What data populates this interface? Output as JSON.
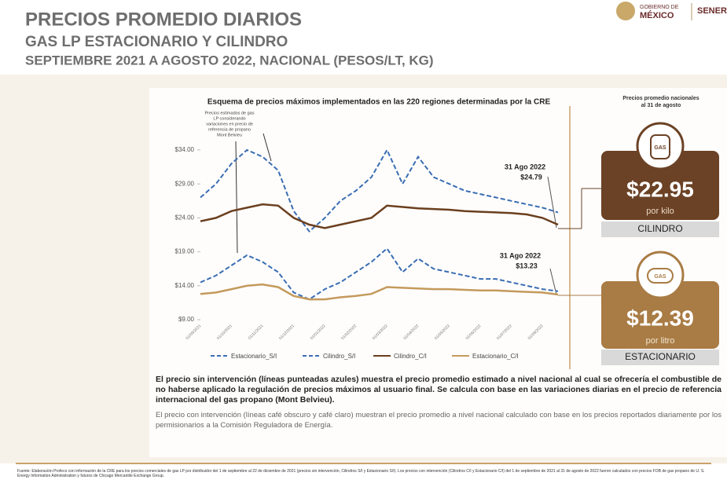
{
  "header": {
    "title": "PRECIOS PROMEDIO DIARIOS",
    "subtitle": "GAS LP ESTACIONARIO Y CILINDRO",
    "period": "SEPTIEMBRE 2021 A AGOSTO 2022, NACIONAL (PESOS/LT, KG)",
    "logo_top": "GOBIERNO DE",
    "logo_bottom": "MÉXICO",
    "agency": "SENER"
  },
  "chart_data": {
    "type": "line",
    "title": "Esquema de precios máximos implementados en las 220 regiones determinadas por la CRE",
    "annotation": [
      "Precios estimados de gas",
      "LP considerando",
      "variaciones en precio de",
      "referencia de propano",
      "Mont Belvieu"
    ],
    "end_labels": [
      {
        "date": "31 Ago 2022",
        "price": "$24.79"
      },
      {
        "date": "31 Ago 2022",
        "price": "$13.23"
      }
    ],
    "categories": [
      "01/09/2021",
      null,
      "01/10/2021",
      null,
      "01/11/2021",
      null,
      "01/12/2021",
      null,
      "01/01/2022",
      null,
      "01/02/2022",
      null,
      "01/03/2022",
      null,
      "01/04/2022",
      null,
      "01/05/2022",
      null,
      "01/06/2022",
      null,
      "01/07/2022",
      null,
      "01/08/2022",
      null
    ],
    "ylim": [
      9,
      37
    ],
    "yticks": [
      {
        "value": 9,
        "label": "$9.00"
      },
      {
        "value": 14,
        "label": "$14.00"
      },
      {
        "value": 19,
        "label": "$19.00"
      },
      {
        "value": 24,
        "label": "$24.00"
      },
      {
        "value": 29,
        "label": "$29.00"
      },
      {
        "value": 34,
        "label": "$34.00"
      }
    ],
    "series": [
      {
        "name": "Estacionario_S/I",
        "color": "#3a6db3",
        "style": "dashed",
        "values": [
          14.5,
          15.5,
          17,
          18.5,
          17.5,
          16,
          13,
          12,
          13.5,
          14.5,
          16,
          17.5,
          19.5,
          16,
          18,
          16.5,
          16,
          15.5,
          15,
          15,
          14.5,
          14,
          13.5,
          13.2
        ]
      },
      {
        "name": "Cilindro_S/I",
        "color": "#3a6db3",
        "style": "dashed",
        "values": [
          27,
          29,
          32,
          34,
          33,
          31,
          25,
          22,
          24,
          26.5,
          28,
          30,
          34,
          29,
          33,
          30,
          29,
          28,
          27.5,
          27,
          26.5,
          26,
          25.5,
          24.8
        ]
      },
      {
        "name": "Cilindro_C/I",
        "color": "#6b3f1e",
        "style": "solid",
        "values": [
          23.5,
          24,
          25,
          25.5,
          26,
          25.8,
          24,
          23,
          22.5,
          23,
          23.5,
          24,
          25.8,
          25.6,
          25.4,
          25.3,
          25.2,
          25,
          24.9,
          24.8,
          24.7,
          24.5,
          24,
          23
        ]
      },
      {
        "name": "Estacionario_C/I",
        "color": "#c49a5c",
        "style": "solid",
        "values": [
          12.8,
          13,
          13.5,
          14,
          14.2,
          13.8,
          12.5,
          12,
          12,
          12.3,
          12.5,
          12.8,
          13.8,
          13.7,
          13.6,
          13.5,
          13.5,
          13.4,
          13.3,
          13.3,
          13.2,
          13.1,
          13,
          12.7
        ]
      }
    ]
  },
  "panel": {
    "title": [
      "Precios promedio nacionales",
      "al 31 de agosto"
    ],
    "icon": "GAS",
    "cylinder": {
      "price": "$22.95",
      "unit": "por kilo",
      "label": "CILINDRO"
    },
    "stationary": {
      "price": "$12.39",
      "unit": "por litro",
      "label": "ESTACIONARIO"
    }
  },
  "notes": [
    "El precio sin intervención (líneas punteadas azules) muestra el precio promedio estimado a nivel nacional al cual se ofrecería el combustible de no haberse aplicado la regulación de precios máximos al usuario final. Se calcula con base en las variaciones diarias en el precio de referencia internacional del gas propano (Mont Belvieu).",
    "El precio con intervención (líneas café obscuro y café claro) muestran el precio promedio a nivel nacional calculado con base en los precios reportados diariamente por los permisionarios a la Comisión Reguladora de Energía."
  ],
  "footer": "Fuente: Elaboración Profeco con información de la CRE para los precios comerciales de gas LP por distribuidor del 1 de septiembre al 22 de diciembre de 2021 (precios sin intervención, Cilindros S/I y Estacionario S/I). Los precios con intervención (Cilindros C/I y Estacionario C/I) del 1 de septiembre de 2021 al 31 de agosto de 2022 fueron calculados con precios FOB de gas propano de U. S. Energy Information Administration y futuros de Chicago Mercantile Exchange Group."
}
